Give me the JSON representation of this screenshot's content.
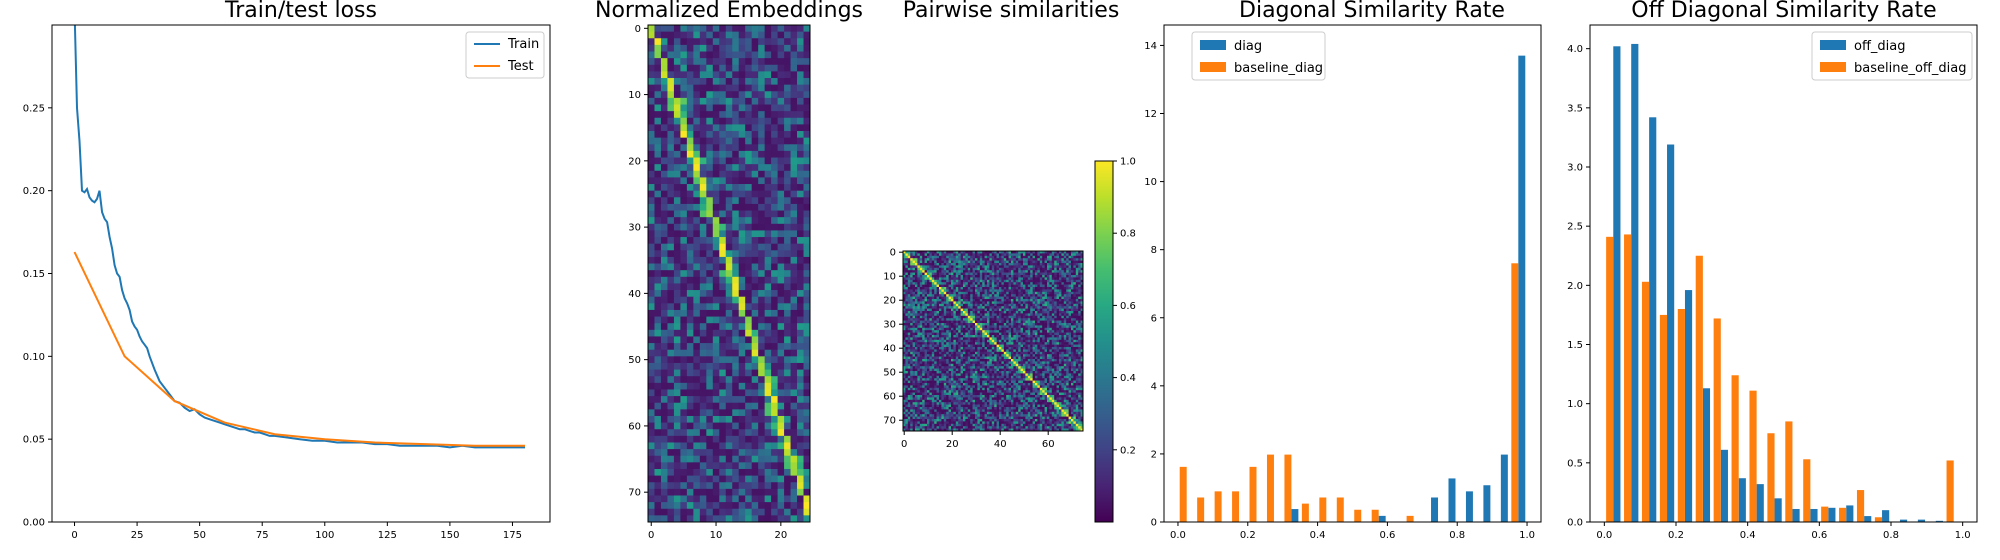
{
  "chart_data": [
    {
      "type": "line",
      "title": "Train/test loss",
      "xlim": [
        -9,
        190
      ],
      "ylim": [
        0,
        0.3
      ],
      "xticks": [
        0,
        25,
        50,
        75,
        100,
        125,
        150,
        175
      ],
      "yticks": [
        0.0,
        0.05,
        0.1,
        0.15,
        0.2,
        0.25
      ],
      "ytick_labels": [
        "0.00",
        "0.05",
        "0.10",
        "0.15",
        "0.20",
        "0.25"
      ],
      "legend_position": "top-right",
      "series": [
        {
          "name": "Train",
          "color": "#1f77b4",
          "x": [
            0,
            1,
            2,
            3,
            4,
            5,
            6,
            7,
            8,
            9,
            10,
            11,
            12,
            13,
            14,
            15,
            16,
            17,
            18,
            19,
            20,
            21,
            22,
            23,
            24,
            25,
            26,
            27,
            28,
            29,
            30,
            32,
            34,
            36,
            38,
            40,
            42,
            44,
            46,
            48,
            50,
            52,
            54,
            56,
            58,
            60,
            62,
            64,
            66,
            68,
            70,
            72,
            74,
            76,
            78,
            80,
            85,
            90,
            95,
            100,
            105,
            110,
            115,
            120,
            125,
            130,
            135,
            140,
            145,
            150,
            155,
            160,
            165,
            170,
            175,
            180
          ],
          "y": [
            0.31,
            0.25,
            0.23,
            0.2,
            0.199,
            0.201,
            0.196,
            0.194,
            0.193,
            0.195,
            0.2,
            0.187,
            0.183,
            0.181,
            0.172,
            0.165,
            0.155,
            0.15,
            0.148,
            0.14,
            0.135,
            0.132,
            0.128,
            0.121,
            0.118,
            0.116,
            0.112,
            0.109,
            0.107,
            0.105,
            0.1,
            0.092,
            0.085,
            0.081,
            0.077,
            0.073,
            0.072,
            0.069,
            0.067,
            0.068,
            0.065,
            0.063,
            0.062,
            0.061,
            0.06,
            0.059,
            0.058,
            0.057,
            0.056,
            0.056,
            0.055,
            0.054,
            0.054,
            0.053,
            0.052,
            0.052,
            0.051,
            0.05,
            0.049,
            0.049,
            0.048,
            0.048,
            0.048,
            0.047,
            0.047,
            0.046,
            0.046,
            0.046,
            0.046,
            0.045,
            0.046,
            0.045,
            0.045,
            0.045,
            0.045,
            0.045
          ]
        },
        {
          "name": "Test",
          "color": "#ff7f0e",
          "x": [
            0,
            20,
            40,
            60,
            80,
            100,
            120,
            140,
            160,
            180
          ],
          "y": [
            0.163,
            0.1,
            0.073,
            0.06,
            0.053,
            0.05,
            0.048,
            0.047,
            0.046,
            0.046
          ]
        }
      ]
    },
    {
      "type": "heatmap",
      "title": "Normalized Embeddings",
      "rows": 75,
      "cols": 25,
      "xticks": [
        0,
        10,
        20
      ],
      "yticks": [
        0,
        10,
        20,
        30,
        40,
        50,
        60,
        70
      ],
      "colormap": "viridis"
    },
    {
      "type": "heatmap",
      "title": "Pairwise similarities",
      "rows": 75,
      "cols": 75,
      "xticks": [
        0,
        20,
        40,
        60
      ],
      "yticks": [
        0,
        10,
        20,
        30,
        40,
        50,
        60,
        70
      ],
      "colormap": "viridis",
      "colorbar": {
        "vmin": 0,
        "vmax": 1,
        "ticks": [
          0.2,
          0.4,
          0.6,
          0.8,
          1.0
        ],
        "tick_labels": [
          "0.2",
          "0.4",
          "0.6",
          "0.8",
          "1.0"
        ]
      }
    },
    {
      "type": "bar",
      "title": "Diagonal Similarity Rate",
      "xlim": [
        -0.04,
        1.04
      ],
      "ylim": [
        0,
        14.6
      ],
      "xticks": [
        0.0,
        0.2,
        0.4,
        0.6,
        0.8,
        1.0
      ],
      "xtick_labels": [
        "0.0",
        "0.2",
        "0.4",
        "0.6",
        "0.8",
        "1.0"
      ],
      "yticks": [
        0,
        2,
        4,
        6,
        8,
        10,
        12,
        14
      ],
      "legend_position": "top-left",
      "bin_centers": [
        0.025,
        0.075,
        0.125,
        0.175,
        0.225,
        0.275,
        0.325,
        0.375,
        0.425,
        0.475,
        0.525,
        0.575,
        0.625,
        0.675,
        0.725,
        0.775,
        0.825,
        0.875,
        0.925,
        0.975
      ],
      "series": [
        {
          "name": "diag",
          "color": "#1f77b4",
          "values": [
            0,
            0,
            0,
            0,
            0,
            0,
            0.38,
            0,
            0,
            0,
            0,
            0.18,
            0,
            0,
            0.72,
            1.28,
            0.9,
            1.08,
            1.98,
            13.7
          ]
        },
        {
          "name": "baseline_diag",
          "color": "#ff7f0e",
          "values": [
            1.62,
            0.72,
            0.9,
            0.9,
            1.62,
            1.98,
            1.98,
            0.54,
            0.72,
            0.72,
            0.36,
            0.36,
            0,
            0.18,
            0,
            0,
            0,
            0,
            0,
            7.6
          ]
        }
      ]
    },
    {
      "type": "bar",
      "title": "Off Diagonal Similarity Rate",
      "xlim": [
        -0.04,
        1.04
      ],
      "ylim": [
        0,
        4.2
      ],
      "xticks": [
        0.0,
        0.2,
        0.4,
        0.6,
        0.8,
        1.0
      ],
      "xtick_labels": [
        "0.0",
        "0.2",
        "0.4",
        "0.6",
        "0.8",
        "1.0"
      ],
      "yticks": [
        0,
        0.5,
        1.0,
        1.5,
        2.0,
        2.5,
        3.0,
        3.5,
        4.0
      ],
      "ytick_labels": [
        "0.0",
        "0.5",
        "1.0",
        "1.5",
        "2.0",
        "2.5",
        "3.0",
        "3.5",
        "4.0"
      ],
      "legend_position": "top-right",
      "bin_centers": [
        0.025,
        0.075,
        0.125,
        0.175,
        0.225,
        0.275,
        0.325,
        0.375,
        0.425,
        0.475,
        0.525,
        0.575,
        0.625,
        0.675,
        0.725,
        0.775,
        0.825,
        0.875,
        0.925,
        0.975
      ],
      "series": [
        {
          "name": "off_diag",
          "color": "#1f77b4",
          "values": [
            4.02,
            4.04,
            3.42,
            3.19,
            1.96,
            1.13,
            0.61,
            0.37,
            0.32,
            0.2,
            0.11,
            0.11,
            0.12,
            0.14,
            0.05,
            0.1,
            0.02,
            0.02,
            0.01,
            0
          ]
        },
        {
          "name": "baseline_off_diag",
          "color": "#ff7f0e",
          "values": [
            2.41,
            2.43,
            2.03,
            1.75,
            1.8,
            2.25,
            1.72,
            1.24,
            1.11,
            0.75,
            0.85,
            0.53,
            0.13,
            0.12,
            0.27,
            0.04,
            0,
            0,
            0,
            0.52
          ]
        }
      ]
    }
  ]
}
